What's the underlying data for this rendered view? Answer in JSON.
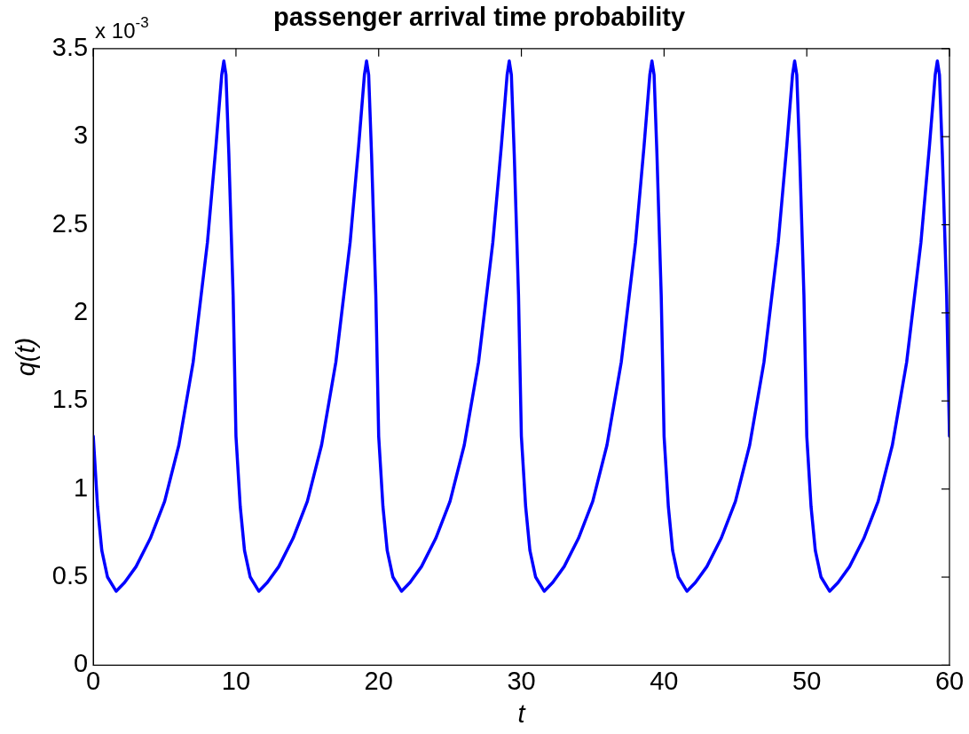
{
  "chart_data": {
    "type": "line",
    "title": "passenger arrival time probability",
    "xlabel": "t",
    "ylabel": "q(t)",
    "annotations": [
      "x 10$^{-3}$"
    ],
    "x": [
      0,
      0.3,
      0.6,
      1,
      1.6,
      2.2,
      3,
      4,
      5,
      6,
      7,
      8,
      8.6,
      9,
      9.15,
      9.3,
      9.5,
      9.8,
      10,
      10.3,
      10.6,
      11,
      11.6,
      12.2,
      13,
      14,
      15,
      16,
      17,
      18,
      18.6,
      19,
      19.15,
      19.3,
      19.5,
      19.8,
      20,
      20.3,
      20.6,
      21,
      21.6,
      22.2,
      23,
      24,
      25,
      26,
      27,
      28,
      28.6,
      29,
      29.15,
      29.3,
      29.5,
      29.8,
      30,
      30.3,
      30.6,
      31,
      31.6,
      32.2,
      33,
      34,
      35,
      36,
      37,
      38,
      38.6,
      39,
      39.15,
      39.3,
      39.5,
      39.8,
      40,
      40.3,
      40.6,
      41,
      41.6,
      42.2,
      43,
      44,
      45,
      46,
      47,
      48,
      48.6,
      49,
      49.15,
      49.3,
      49.5,
      49.8,
      50,
      50.3,
      50.6,
      51,
      51.6,
      52.2,
      53,
      54,
      55,
      56,
      57,
      58,
      58.6,
      59,
      59.15,
      59.3,
      59.5,
      59.8,
      60
    ],
    "series": [
      {
        "color": "#0000ff",
        "values": [
          1.3,
          0.9,
          0.65,
          0.5,
          0.42,
          0.47,
          0.56,
          0.72,
          0.93,
          1.25,
          1.72,
          2.4,
          2.95,
          3.35,
          3.43,
          3.35,
          2.9,
          2.1,
          1.3,
          0.9,
          0.65,
          0.5,
          0.42,
          0.47,
          0.56,
          0.72,
          0.93,
          1.25,
          1.72,
          2.4,
          2.95,
          3.35,
          3.43,
          3.35,
          2.9,
          2.1,
          1.3,
          0.9,
          0.65,
          0.5,
          0.42,
          0.47,
          0.56,
          0.72,
          0.93,
          1.25,
          1.72,
          2.4,
          2.95,
          3.35,
          3.43,
          3.35,
          2.9,
          2.1,
          1.3,
          0.9,
          0.65,
          0.5,
          0.42,
          0.47,
          0.56,
          0.72,
          0.93,
          1.25,
          1.72,
          2.4,
          2.95,
          3.35,
          3.43,
          3.35,
          2.9,
          2.1,
          1.3,
          0.9,
          0.65,
          0.5,
          0.42,
          0.47,
          0.56,
          0.72,
          0.93,
          1.25,
          1.72,
          2.4,
          2.95,
          3.35,
          3.43,
          3.35,
          2.9,
          2.1,
          1.3,
          0.9,
          0.65,
          0.5,
          0.42,
          0.47,
          0.56,
          0.72,
          0.93,
          1.25,
          1.72,
          2.4,
          2.95,
          3.35,
          3.43,
          3.35,
          2.9,
          2.1,
          1.3
        ]
      }
    ],
    "xlim": [
      0,
      60
    ],
    "xticks": [
      0,
      10,
      20,
      30,
      40,
      50,
      60
    ],
    "ylim": [
      0,
      3.5
    ],
    "yticks": [
      0,
      0.5,
      1,
      1.5,
      2,
      2.5,
      3,
      3.5
    ],
    "grid": false,
    "legend": false,
    "marker": "none",
    "line_style": "solid"
  }
}
